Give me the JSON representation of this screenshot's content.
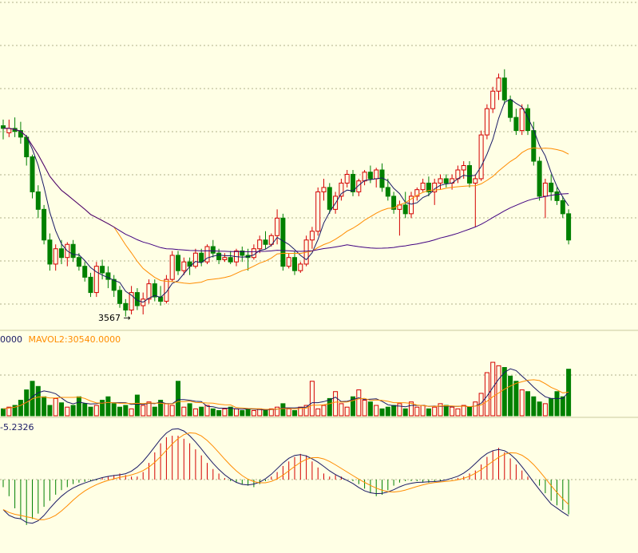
{
  "chart_data": [
    {
      "type": "candlestick",
      "panel": "price",
      "annotation": "3567",
      "series_colors": {
        "up": "#d40000",
        "down": "#008000",
        "ma_short": "#1a1a66",
        "ma_mid": "#ff8c00",
        "ma_long": "#400080"
      },
      "ylim": [
        3460,
        4180
      ],
      "ohlc": [
        [
          3911,
          3925,
          3880,
          3905
        ],
        [
          3895,
          3925,
          3885,
          3905
        ],
        [
          3905,
          3930,
          3885,
          3898
        ],
        [
          3900,
          3920,
          3870,
          3885
        ],
        [
          3885,
          3890,
          3820,
          3840
        ],
        [
          3840,
          3845,
          3745,
          3760
        ],
        [
          3760,
          3775,
          3700,
          3720
        ],
        [
          3720,
          3730,
          3640,
          3650
        ],
        [
          3650,
          3665,
          3580,
          3595
        ],
        [
          3595,
          3640,
          3580,
          3630
        ],
        [
          3630,
          3650,
          3595,
          3610
        ],
        [
          3610,
          3645,
          3590,
          3640
        ],
        [
          3640,
          3650,
          3600,
          3610
        ],
        [
          3610,
          3620,
          3580,
          3590
        ],
        [
          3590,
          3600,
          3555,
          3565
        ],
        [
          3565,
          3575,
          3520,
          3530
        ],
        [
          3530,
          3600,
          3520,
          3590
        ],
        [
          3590,
          3605,
          3560,
          3575
        ],
        [
          3575,
          3590,
          3540,
          3560
        ],
        [
          3560,
          3570,
          3520,
          3535
        ],
        [
          3535,
          3545,
          3495,
          3505
        ],
        [
          3505,
          3515,
          3475,
          3490
        ],
        [
          3490,
          3545,
          3480,
          3530
        ],
        [
          3530,
          3540,
          3490,
          3500
        ],
        [
          3500,
          3530,
          3480,
          3515
        ],
        [
          3515,
          3560,
          3505,
          3550
        ],
        [
          3550,
          3560,
          3510,
          3520
        ],
        [
          3520,
          3545,
          3500,
          3510
        ],
        [
          3510,
          3570,
          3505,
          3560
        ],
        [
          3560,
          3625,
          3555,
          3615
        ],
        [
          3615,
          3625,
          3570,
          3580
        ],
        [
          3580,
          3610,
          3570,
          3600
        ],
        [
          3600,
          3610,
          3570,
          3590
        ],
        [
          3590,
          3630,
          3585,
          3620
        ],
        [
          3620,
          3630,
          3590,
          3600
        ],
        [
          3600,
          3640,
          3595,
          3635
        ],
        [
          3635,
          3650,
          3610,
          3620
        ],
        [
          3620,
          3630,
          3595,
          3605
        ],
        [
          3605,
          3620,
          3600,
          3610
        ],
        [
          3610,
          3625,
          3595,
          3600
        ],
        [
          3600,
          3630,
          3590,
          3625
        ],
        [
          3625,
          3635,
          3600,
          3615
        ],
        [
          3615,
          3630,
          3580,
          3610
        ],
        [
          3610,
          3640,
          3605,
          3630
        ],
        [
          3630,
          3660,
          3620,
          3650
        ],
        [
          3650,
          3670,
          3630,
          3640
        ],
        [
          3640,
          3665,
          3635,
          3660
        ],
        [
          3660,
          3720,
          3640,
          3700
        ],
        [
          3700,
          3710,
          3580,
          3590
        ],
        [
          3590,
          3620,
          3585,
          3610
        ],
        [
          3610,
          3625,
          3570,
          3580
        ],
        [
          3580,
          3600,
          3575,
          3595
        ],
        [
          3595,
          3660,
          3590,
          3650
        ],
        [
          3650,
          3680,
          3630,
          3670
        ],
        [
          3670,
          3770,
          3660,
          3760
        ],
        [
          3760,
          3790,
          3740,
          3770
        ],
        [
          3770,
          3780,
          3710,
          3720
        ],
        [
          3720,
          3760,
          3710,
          3750
        ],
        [
          3750,
          3790,
          3740,
          3780
        ],
        [
          3780,
          3810,
          3770,
          3800
        ],
        [
          3800,
          3810,
          3750,
          3760
        ],
        [
          3760,
          3790,
          3750,
          3785
        ],
        [
          3785,
          3810,
          3775,
          3805
        ],
        [
          3805,
          3820,
          3780,
          3790
        ],
        [
          3790,
          3815,
          3770,
          3810
        ],
        [
          3810,
          3825,
          3760,
          3770
        ],
        [
          3770,
          3790,
          3740,
          3750
        ],
        [
          3750,
          3760,
          3710,
          3720
        ],
        [
          3720,
          3740,
          3660,
          3730
        ],
        [
          3730,
          3760,
          3700,
          3710
        ],
        [
          3710,
          3760,
          3700,
          3750
        ],
        [
          3750,
          3770,
          3740,
          3765
        ],
        [
          3765,
          3790,
          3760,
          3780
        ],
        [
          3780,
          3795,
          3750,
          3760
        ],
        [
          3760,
          3790,
          3730,
          3780
        ],
        [
          3780,
          3800,
          3765,
          3790
        ],
        [
          3790,
          3800,
          3770,
          3780
        ],
        [
          3780,
          3800,
          3765,
          3790
        ],
        [
          3790,
          3820,
          3780,
          3810
        ],
        [
          3810,
          3830,
          3790,
          3820
        ],
        [
          3820,
          3830,
          3770,
          3780
        ],
        [
          3780,
          3800,
          3680,
          3790
        ],
        [
          3790,
          3900,
          3785,
          3890
        ],
        [
          3890,
          3960,
          3880,
          3950
        ],
        [
          3950,
          4000,
          3940,
          3990
        ],
        [
          3990,
          4030,
          3970,
          4020
        ],
        [
          4020,
          4040,
          3960,
          3970
        ],
        [
          3970,
          3980,
          3920,
          3930
        ],
        [
          3930,
          3950,
          3890,
          3900
        ],
        [
          3900,
          3960,
          3890,
          3950
        ],
        [
          3950,
          3960,
          3890,
          3900
        ],
        [
          3900,
          3920,
          3820,
          3830
        ],
        [
          3830,
          3840,
          3740,
          3750
        ],
        [
          3750,
          3790,
          3700,
          3780
        ],
        [
          3780,
          3800,
          3740,
          3760
        ],
        [
          3760,
          3770,
          3730,
          3740
        ],
        [
          3740,
          3750,
          3700,
          3710
        ],
        [
          3710,
          3720,
          3640,
          3650
        ]
      ]
    },
    {
      "type": "bar",
      "panel": "volume",
      "legend": [
        {
          "label": "0000"
        },
        {
          "label": "MAVOL2:30540.0000",
          "color": "#ff8c00"
        }
      ],
      "ylim": [
        0,
        75
      ],
      "values": [
        8,
        10,
        12,
        18,
        30,
        40,
        34,
        22,
        12,
        20,
        15,
        10,
        12,
        22,
        14,
        10,
        12,
        18,
        22,
        14,
        10,
        12,
        8,
        24,
        12,
        16,
        10,
        18,
        14,
        12,
        40,
        10,
        14,
        8,
        10,
        12,
        8,
        6,
        8,
        10,
        8,
        6,
        8,
        6,
        8,
        6,
        8,
        10,
        14,
        8,
        6,
        10,
        12,
        40,
        8,
        12,
        20,
        28,
        14,
        10,
        22,
        30,
        18,
        16,
        12,
        8,
        10,
        12,
        14,
        8,
        16,
        10,
        12,
        8,
        10,
        14,
        12,
        10,
        8,
        12,
        10,
        16,
        26,
        50,
        62,
        58,
        56,
        46,
        40,
        30,
        28,
        22,
        16,
        14,
        20,
        28,
        22,
        54,
        30,
        22,
        24,
        26,
        34
      ]
    },
    {
      "type": "bar",
      "panel": "macd",
      "legend": [
        {
          "label": "-5.2326"
        }
      ],
      "ylim": [
        -95,
        95
      ],
      "values": [
        -10,
        -22,
        -38,
        -52,
        -60,
        -52,
        -45,
        -36,
        -28,
        -20,
        -14,
        -10,
        -6,
        -4,
        -3,
        -2,
        -1,
        2,
        4,
        6,
        8,
        6,
        4,
        4,
        10,
        22,
        36,
        48,
        56,
        58,
        58,
        54,
        48,
        40,
        32,
        22,
        14,
        8,
        2,
        -2,
        -4,
        -6,
        -8,
        -10,
        -6,
        -2,
        4,
        10,
        18,
        24,
        30,
        34,
        32,
        24,
        16,
        8,
        4,
        6,
        4,
        0,
        -2,
        -6,
        -12,
        -18,
        -22,
        -20,
        -14,
        -8,
        -4,
        -2,
        -2,
        -2,
        -4,
        -4,
        -2,
        -2,
        0,
        0,
        2,
        4,
        8,
        12,
        20,
        30,
        38,
        42,
        36,
        28,
        20,
        12,
        4,
        0,
        -8,
        -18,
        -28,
        -34,
        -40,
        -46,
        -48
      ]
    }
  ]
}
